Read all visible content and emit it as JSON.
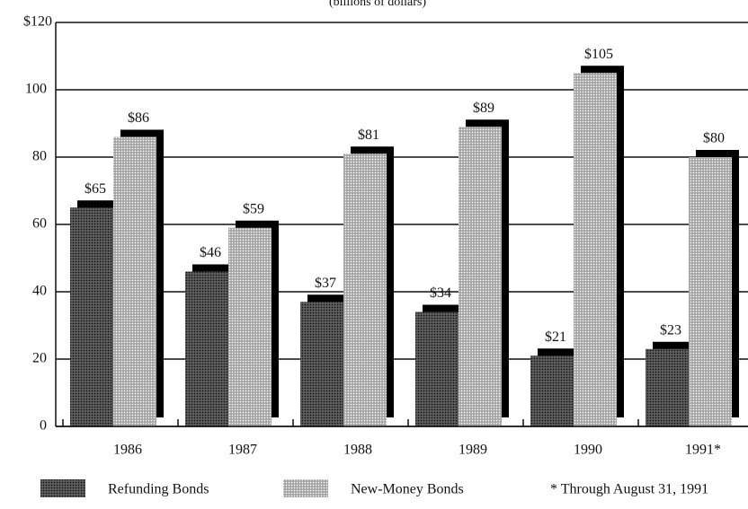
{
  "chart_data": {
    "type": "bar",
    "subtitle": "(billions of dollars)",
    "categories": [
      "1986",
      "1987",
      "1988",
      "1989",
      "1990",
      "1991*"
    ],
    "series": [
      {
        "name": "Refunding Bonds",
        "color": "#4a4a4a",
        "values": [
          65,
          46,
          37,
          34,
          21,
          23
        ],
        "value_labels": [
          "$65",
          "$46",
          "$37",
          "$34",
          "$21",
          "$23"
        ]
      },
      {
        "name": "New-Money Bonds",
        "color": "#b8b8b8",
        "values": [
          86,
          59,
          81,
          89,
          105,
          80
        ],
        "value_labels": [
          "$86",
          "$59",
          "$81",
          "$89",
          "$105",
          "$80"
        ]
      }
    ],
    "ylim": [
      0,
      120
    ],
    "yticks": [
      0,
      20,
      40,
      60,
      80,
      100,
      {
        "value": 120,
        "label": "$120"
      }
    ],
    "grid": true,
    "note": "* Through August 31, 1991"
  }
}
